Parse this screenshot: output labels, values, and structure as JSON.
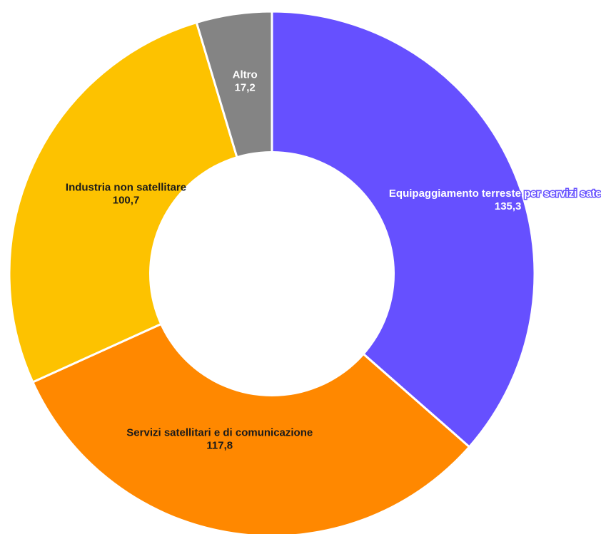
{
  "chart_data": {
    "type": "pie",
    "variant": "donut",
    "title": "",
    "categories": [
      "Equipaggiamento terreste per servizi satellitari",
      "Servizi satellitari e di comunicazione",
      "Industria non satellitare",
      "Altro"
    ],
    "values": [
      135.3,
      117.8,
      100.7,
      17.2
    ],
    "value_labels": [
      "135,3",
      "117,8",
      "100,7",
      "17,2"
    ],
    "colors": [
      "#6650ff",
      "#ff8800",
      "#fdc200",
      "#848484"
    ],
    "label_colors": [
      "#ffffff",
      "#1a1a1a",
      "#1a1a1a",
      "#ffffff"
    ],
    "label_halo": [
      "#6650ff",
      null,
      null,
      null
    ],
    "legend": "none",
    "start": "top",
    "direction": "clockwise"
  }
}
